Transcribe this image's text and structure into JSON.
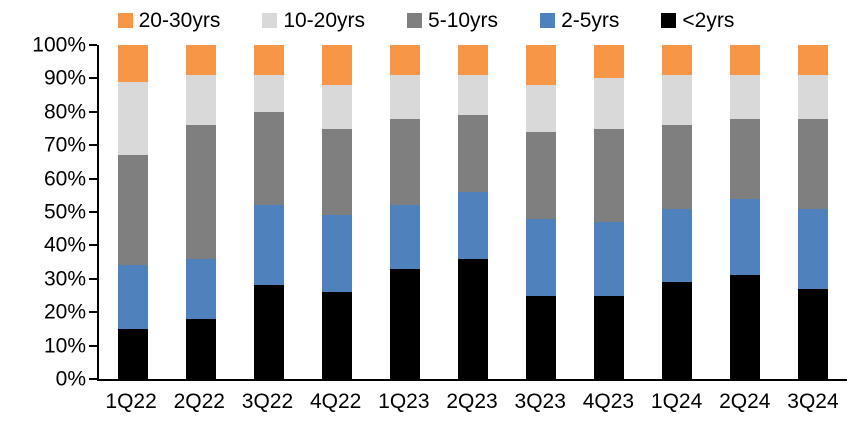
{
  "chart_data": {
    "type": "bar",
    "variant": "100%-stacked-column",
    "title": "",
    "categories": [
      "1Q22",
      "2Q22",
      "3Q22",
      "4Q22",
      "1Q23",
      "2Q23",
      "3Q23",
      "4Q23",
      "1Q24",
      "2Q24",
      "3Q24"
    ],
    "series": [
      {
        "name": "<2yrs",
        "color": "#000000",
        "values": [
          15,
          18,
          28,
          26,
          33,
          36,
          25,
          25,
          29,
          31,
          27
        ]
      },
      {
        "name": "2-5yrs",
        "color": "#4F81BD",
        "values": [
          19,
          18,
          24,
          23,
          19,
          20,
          23,
          22,
          22,
          23,
          24
        ]
      },
      {
        "name": "5-10yrs",
        "color": "#7F7F7F",
        "values": [
          33,
          40,
          28,
          26,
          26,
          23,
          26,
          28,
          25,
          24,
          27
        ]
      },
      {
        "name": "10-20yrs",
        "color": "#D9D9D9",
        "values": [
          22,
          15,
          11,
          13,
          13,
          12,
          14,
          15,
          15,
          13,
          13
        ]
      },
      {
        "name": "20-30yrs",
        "color": "#F79646",
        "values": [
          11,
          9,
          9,
          12,
          9,
          9,
          12,
          10,
          9,
          9,
          9
        ]
      }
    ],
    "stack_order_bottom_to_top": [
      "<2yrs",
      "2-5yrs",
      "5-10yrs",
      "10-20yrs",
      "20-30yrs"
    ],
    "legend": {
      "position": "top",
      "order": [
        "20-30yrs",
        "10-20yrs",
        "5-10yrs",
        "2-5yrs",
        "<2yrs"
      ]
    },
    "y_axis": {
      "min": 0,
      "max": 100,
      "tick_step": 10,
      "tick_labels": [
        "0%",
        "10%",
        "20%",
        "30%",
        "40%",
        "50%",
        "60%",
        "70%",
        "80%",
        "90%",
        "100%"
      ],
      "format": "percent"
    },
    "grid": false,
    "axis_color": "#000000",
    "background": "#FFFFFF"
  }
}
